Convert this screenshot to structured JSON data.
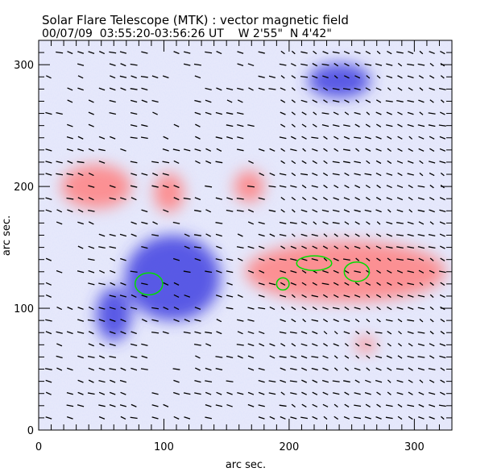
{
  "chart_data": {
    "type": "heatmap",
    "title": "Solar Flare Telescope (MTK) : vector magnetic field",
    "subtitle": "00/07/09  03:55:20-03:56:26 UT    W 2'55\"  N 4'42\"",
    "xlabel": "arc sec.",
    "ylabel": "arc sec.",
    "xlim": [
      0,
      330
    ],
    "ylim": [
      0,
      320
    ],
    "xticks": [
      0,
      100,
      200,
      300
    ],
    "yticks": [
      0,
      100,
      200,
      300
    ],
    "colors": {
      "positive": "#ff8080",
      "negative": "#4040e0",
      "background": "#c8ccf4",
      "contour": "#00dd00",
      "vectors": "#000000"
    },
    "regions": [
      {
        "polarity": "negative",
        "x": 107,
        "y": 125,
        "rx": 38,
        "ry": 35
      },
      {
        "polarity": "negative",
        "x": 60,
        "y": 95,
        "rx": 14,
        "ry": 22
      },
      {
        "polarity": "negative",
        "x": 240,
        "y": 287,
        "rx": 25,
        "ry": 14
      },
      {
        "polarity": "positive",
        "x": 46,
        "y": 200,
        "rx": 28,
        "ry": 18
      },
      {
        "polarity": "positive",
        "x": 104,
        "y": 195,
        "rx": 12,
        "ry": 16
      },
      {
        "polarity": "positive",
        "x": 168,
        "y": 200,
        "rx": 12,
        "ry": 13
      },
      {
        "polarity": "positive",
        "x": 245,
        "y": 130,
        "rx": 80,
        "ry": 25
      },
      {
        "polarity": "positive",
        "x": 261,
        "y": 70,
        "rx": 8,
        "ry": 6
      }
    ],
    "contours": [
      {
        "x": 88,
        "y": 120,
        "rx": 11,
        "ry": 9
      },
      {
        "x": 220,
        "y": 137,
        "rx": 14,
        "ry": 6
      },
      {
        "x": 254,
        "y": 130,
        "rx": 10,
        "ry": 8
      },
      {
        "x": 195,
        "y": 120,
        "rx": 5,
        "ry": 5
      }
    ],
    "vector_angle_deg": -25
  }
}
